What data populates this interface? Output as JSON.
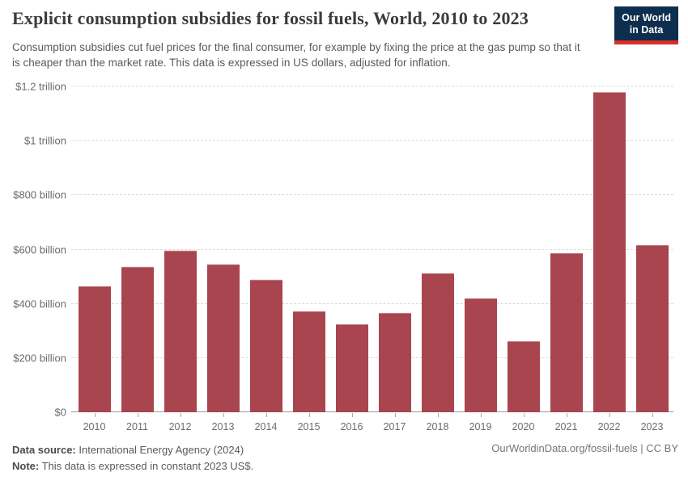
{
  "header": {
    "title": "Explicit consumption subsidies for fossil fuels, World, 2010 to 2023",
    "subtitle": "Consumption subsidies cut fuel prices for the final consumer, for example by fixing the price at the gas pump so that it is cheaper than the market rate. This data is expressed in US dollars, adjusted for inflation.",
    "logo": {
      "line1": "Our World",
      "line2": "in Data",
      "bg_color": "#0d2e4e",
      "accent_color": "#d93025"
    }
  },
  "chart_data": {
    "type": "bar",
    "title": "Explicit consumption subsidies for fossil fuels, World, 2010 to 2023",
    "xlabel": "",
    "ylabel": "",
    "unit": "billion US$ (constant 2023)",
    "categories": [
      "2010",
      "2011",
      "2012",
      "2013",
      "2014",
      "2015",
      "2016",
      "2017",
      "2018",
      "2019",
      "2020",
      "2021",
      "2022",
      "2023"
    ],
    "values": [
      465,
      535,
      595,
      546,
      488,
      373,
      326,
      366,
      511,
      420,
      261,
      586,
      1178,
      617
    ],
    "ylim": [
      0,
      1200
    ],
    "y_ticks": [
      {
        "value": 0,
        "label": "$0"
      },
      {
        "value": 200,
        "label": "$200 billion"
      },
      {
        "value": 400,
        "label": "$400 billion"
      },
      {
        "value": 600,
        "label": "$600 billion"
      },
      {
        "value": 800,
        "label": "$800 billion"
      },
      {
        "value": 1000,
        "label": "$1 trillion"
      },
      {
        "value": 1200,
        "label": "$1.2 trillion"
      }
    ],
    "grid": "dashed horizontal",
    "legend": "none",
    "bar_color": "#a8454f"
  },
  "footer": {
    "data_source_label": "Data source:",
    "data_source_value": " International Energy Agency (2024)",
    "note_label": "Note:",
    "note_value": " This data is expressed in constant 2023 US$.",
    "attribution": "OurWorldinData.org/fossil-fuels | CC BY"
  }
}
